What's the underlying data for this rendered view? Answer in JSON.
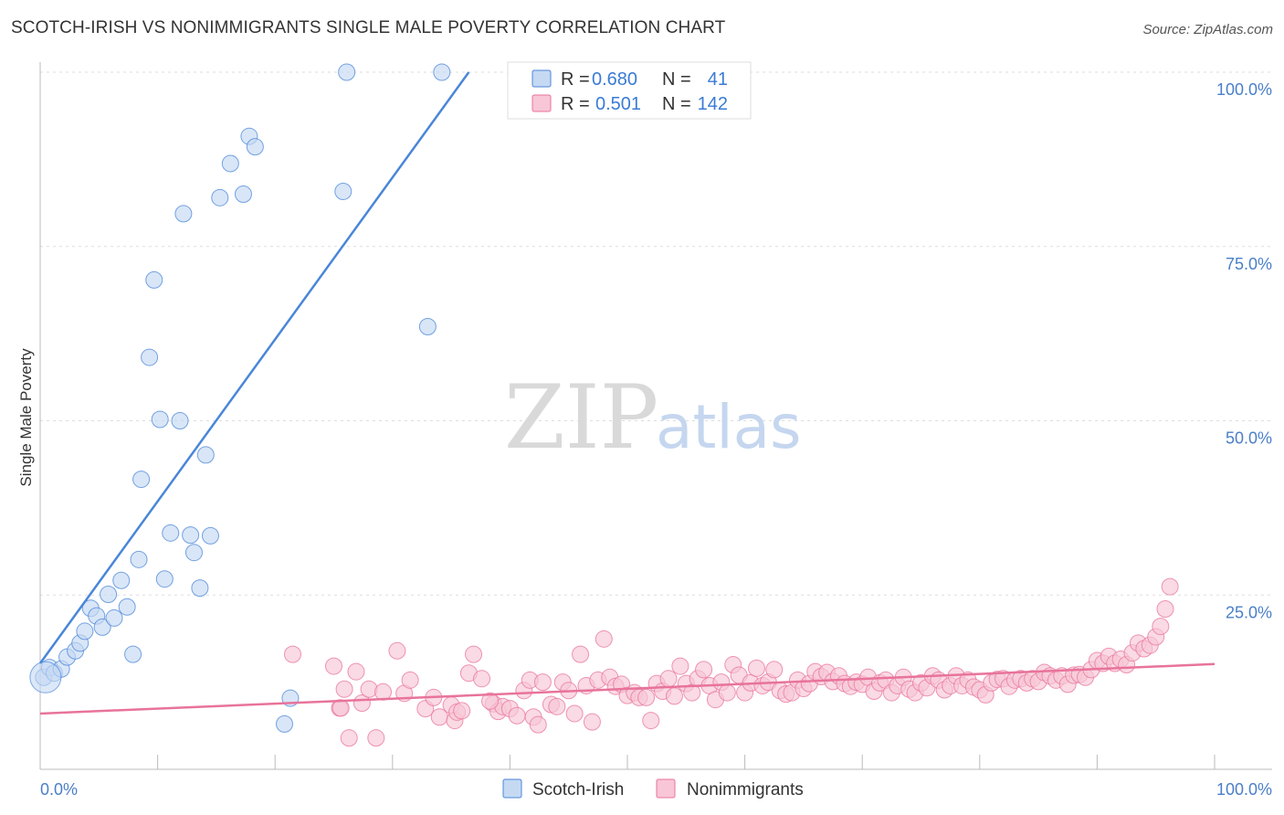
{
  "chart_data": {
    "type": "scatter",
    "title": "SCOTCH-IRISH VS NONIMMIGRANTS SINGLE MALE POVERTY CORRELATION CHART",
    "source": "Source: ZipAtlas.com",
    "xlabel": "",
    "ylabel": "Single Male Poverty",
    "xlim": [
      0,
      100
    ],
    "ylim": [
      0,
      100
    ],
    "x_tick_labels": [
      "0.0%",
      "100.0%"
    ],
    "y_tick_labels": [
      "25.0%",
      "50.0%",
      "75.0%",
      "100.0%"
    ],
    "y_ticks": [
      25,
      50,
      75,
      100
    ],
    "grid": true,
    "watermark": {
      "part1": "ZIP",
      "part2": "atlas"
    },
    "legend": {
      "placement": "top-center",
      "entries": [
        {
          "r_label": "R =",
          "r_value": "0.680",
          "n_label": "N =",
          "n_value": "41"
        },
        {
          "r_label": "R =",
          "r_value": "0.501",
          "n_label": "N =",
          "n_value": "142"
        }
      ]
    },
    "series": [
      {
        "name": "Scotch-Irish",
        "color": "#4a86d8",
        "fill": "#c5d9f3",
        "trend": [
          [
            0,
            15.2
          ],
          [
            36.5,
            100
          ]
        ],
        "points": [
          [
            0.3,
            13.2
          ],
          [
            0.8,
            14.6
          ],
          [
            1.2,
            13.8
          ],
          [
            1.8,
            14.4
          ],
          [
            2.3,
            16.1
          ],
          [
            3.0,
            17.0
          ],
          [
            3.4,
            18.1
          ],
          [
            3.8,
            19.8
          ],
          [
            4.3,
            23.1
          ],
          [
            4.8,
            22.0
          ],
          [
            5.3,
            20.4
          ],
          [
            5.8,
            25.1
          ],
          [
            6.3,
            21.7
          ],
          [
            6.9,
            27.1
          ],
          [
            7.4,
            23.3
          ],
          [
            7.9,
            16.5
          ],
          [
            8.4,
            30.1
          ],
          [
            8.6,
            41.6
          ],
          [
            9.3,
            59.1
          ],
          [
            9.7,
            70.2
          ],
          [
            10.2,
            50.2
          ],
          [
            10.6,
            27.3
          ],
          [
            11.1,
            33.9
          ],
          [
            11.9,
            50.0
          ],
          [
            12.2,
            79.7
          ],
          [
            12.8,
            33.6
          ],
          [
            13.1,
            31.1
          ],
          [
            13.6,
            26.0
          ],
          [
            14.1,
            45.1
          ],
          [
            14.5,
            33.5
          ],
          [
            15.3,
            82.0
          ],
          [
            16.2,
            86.9
          ],
          [
            17.3,
            82.5
          ],
          [
            17.8,
            90.8
          ],
          [
            18.3,
            89.3
          ],
          [
            20.8,
            6.5
          ],
          [
            21.3,
            10.2
          ],
          [
            25.8,
            82.9
          ],
          [
            26.1,
            100.0
          ],
          [
            33.0,
            63.5
          ],
          [
            34.2,
            100.0
          ]
        ]
      },
      {
        "name": "Nonimmigrants",
        "color": "#e8739b",
        "fill": "#f8c6d6",
        "trend": [
          [
            0,
            8.0
          ],
          [
            100,
            15.1
          ]
        ],
        "points": [
          [
            21.5,
            16.5
          ],
          [
            25.0,
            14.8
          ],
          [
            25.5,
            8.8
          ],
          [
            25.9,
            11.5
          ],
          [
            26.3,
            4.5
          ],
          [
            26.9,
            14.0
          ],
          [
            27.4,
            9.5
          ],
          [
            28.0,
            11.5
          ],
          [
            28.6,
            4.5
          ],
          [
            29.2,
            11.1
          ],
          [
            30.4,
            17.0
          ],
          [
            31.0,
            10.9
          ],
          [
            31.5,
            12.8
          ],
          [
            32.8,
            8.7
          ],
          [
            33.5,
            10.3
          ],
          [
            34.0,
            7.5
          ],
          [
            35.0,
            9.2
          ],
          [
            35.3,
            7.0
          ],
          [
            35.5,
            8.2
          ],
          [
            35.9,
            8.4
          ],
          [
            36.5,
            13.8
          ],
          [
            36.9,
            16.5
          ],
          [
            37.6,
            13.0
          ],
          [
            38.6,
            9.4
          ],
          [
            39.0,
            8.3
          ],
          [
            39.4,
            9.0
          ],
          [
            40.0,
            8.7
          ],
          [
            40.6,
            7.7
          ],
          [
            41.2,
            11.3
          ],
          [
            41.7,
            12.8
          ],
          [
            42.0,
            7.5
          ],
          [
            42.4,
            6.4
          ],
          [
            42.8,
            12.5
          ],
          [
            43.5,
            9.3
          ],
          [
            44.0,
            9.0
          ],
          [
            44.5,
            12.5
          ],
          [
            45.0,
            11.3
          ],
          [
            45.5,
            8.0
          ],
          [
            46.0,
            16.5
          ],
          [
            46.5,
            12.0
          ],
          [
            47.0,
            6.8
          ],
          [
            47.5,
            12.8
          ],
          [
            48.0,
            18.7
          ],
          [
            48.5,
            13.2
          ],
          [
            49.0,
            11.9
          ],
          [
            49.5,
            12.2
          ],
          [
            50.0,
            10.6
          ],
          [
            50.6,
            11.0
          ],
          [
            51.0,
            10.3
          ],
          [
            51.6,
            10.3
          ],
          [
            52.0,
            7.0
          ],
          [
            52.5,
            12.3
          ],
          [
            53.0,
            11.2
          ],
          [
            53.5,
            13.0
          ],
          [
            54.0,
            10.5
          ],
          [
            54.5,
            14.8
          ],
          [
            55.0,
            12.3
          ],
          [
            55.5,
            11.0
          ],
          [
            56.0,
            13.0
          ],
          [
            56.5,
            14.3
          ],
          [
            57.0,
            12.0
          ],
          [
            57.5,
            10.0
          ],
          [
            58.0,
            12.5
          ],
          [
            58.5,
            11.0
          ],
          [
            59.0,
            15.0
          ],
          [
            59.5,
            13.5
          ],
          [
            60.0,
            11.0
          ],
          [
            60.5,
            12.4
          ],
          [
            61.0,
            14.5
          ],
          [
            61.5,
            12.0
          ],
          [
            62.0,
            12.5
          ],
          [
            62.5,
            14.3
          ],
          [
            63.0,
            11.3
          ],
          [
            63.5,
            10.8
          ],
          [
            64.0,
            11.0
          ],
          [
            64.5,
            12.8
          ],
          [
            65.0,
            11.6
          ],
          [
            65.5,
            12.3
          ],
          [
            66.0,
            14.0
          ],
          [
            66.5,
            13.3
          ],
          [
            67.0,
            13.9
          ],
          [
            67.5,
            12.6
          ],
          [
            68.0,
            13.4
          ],
          [
            68.5,
            12.3
          ],
          [
            69.0,
            11.9
          ],
          [
            69.5,
            12.5
          ],
          [
            70.0,
            12.2
          ],
          [
            70.5,
            13.2
          ],
          [
            71.0,
            11.2
          ],
          [
            71.5,
            12.4
          ],
          [
            72.0,
            12.8
          ],
          [
            72.5,
            11.0
          ],
          [
            73.0,
            12.0
          ],
          [
            73.5,
            13.2
          ],
          [
            74.0,
            11.5
          ],
          [
            74.5,
            11.0
          ],
          [
            75.0,
            12.4
          ],
          [
            75.5,
            11.7
          ],
          [
            76.0,
            13.4
          ],
          [
            76.5,
            12.8
          ],
          [
            77.0,
            11.4
          ],
          [
            77.5,
            12.0
          ],
          [
            78.0,
            13.4
          ],
          [
            78.5,
            12.0
          ],
          [
            79.0,
            12.8
          ],
          [
            79.5,
            11.8
          ],
          [
            80.0,
            11.4
          ],
          [
            80.5,
            10.7
          ],
          [
            81.0,
            12.4
          ],
          [
            81.5,
            12.9
          ],
          [
            82.0,
            13.0
          ],
          [
            82.5,
            11.9
          ],
          [
            83.0,
            12.8
          ],
          [
            83.5,
            13.0
          ],
          [
            84.0,
            12.4
          ],
          [
            84.5,
            13.0
          ],
          [
            85.0,
            12.6
          ],
          [
            85.5,
            13.9
          ],
          [
            86.0,
            13.4
          ],
          [
            86.5,
            12.8
          ],
          [
            87.0,
            13.4
          ],
          [
            87.5,
            12.2
          ],
          [
            88.0,
            13.5
          ],
          [
            88.5,
            13.6
          ],
          [
            89.0,
            13.2
          ],
          [
            89.5,
            14.3
          ],
          [
            90.0,
            15.6
          ],
          [
            90.5,
            15.2
          ],
          [
            91.0,
            16.2
          ],
          [
            91.5,
            15.2
          ],
          [
            92.0,
            15.8
          ],
          [
            92.5,
            15.0
          ],
          [
            93.0,
            16.7
          ],
          [
            93.5,
            18.1
          ],
          [
            94.0,
            17.3
          ],
          [
            94.5,
            17.8
          ],
          [
            95.0,
            19.0
          ],
          [
            95.4,
            20.5
          ],
          [
            95.8,
            23.0
          ],
          [
            96.2,
            26.2
          ],
          [
            25.6,
            8.8
          ],
          [
            38.3,
            9.8
          ]
        ]
      }
    ]
  }
}
